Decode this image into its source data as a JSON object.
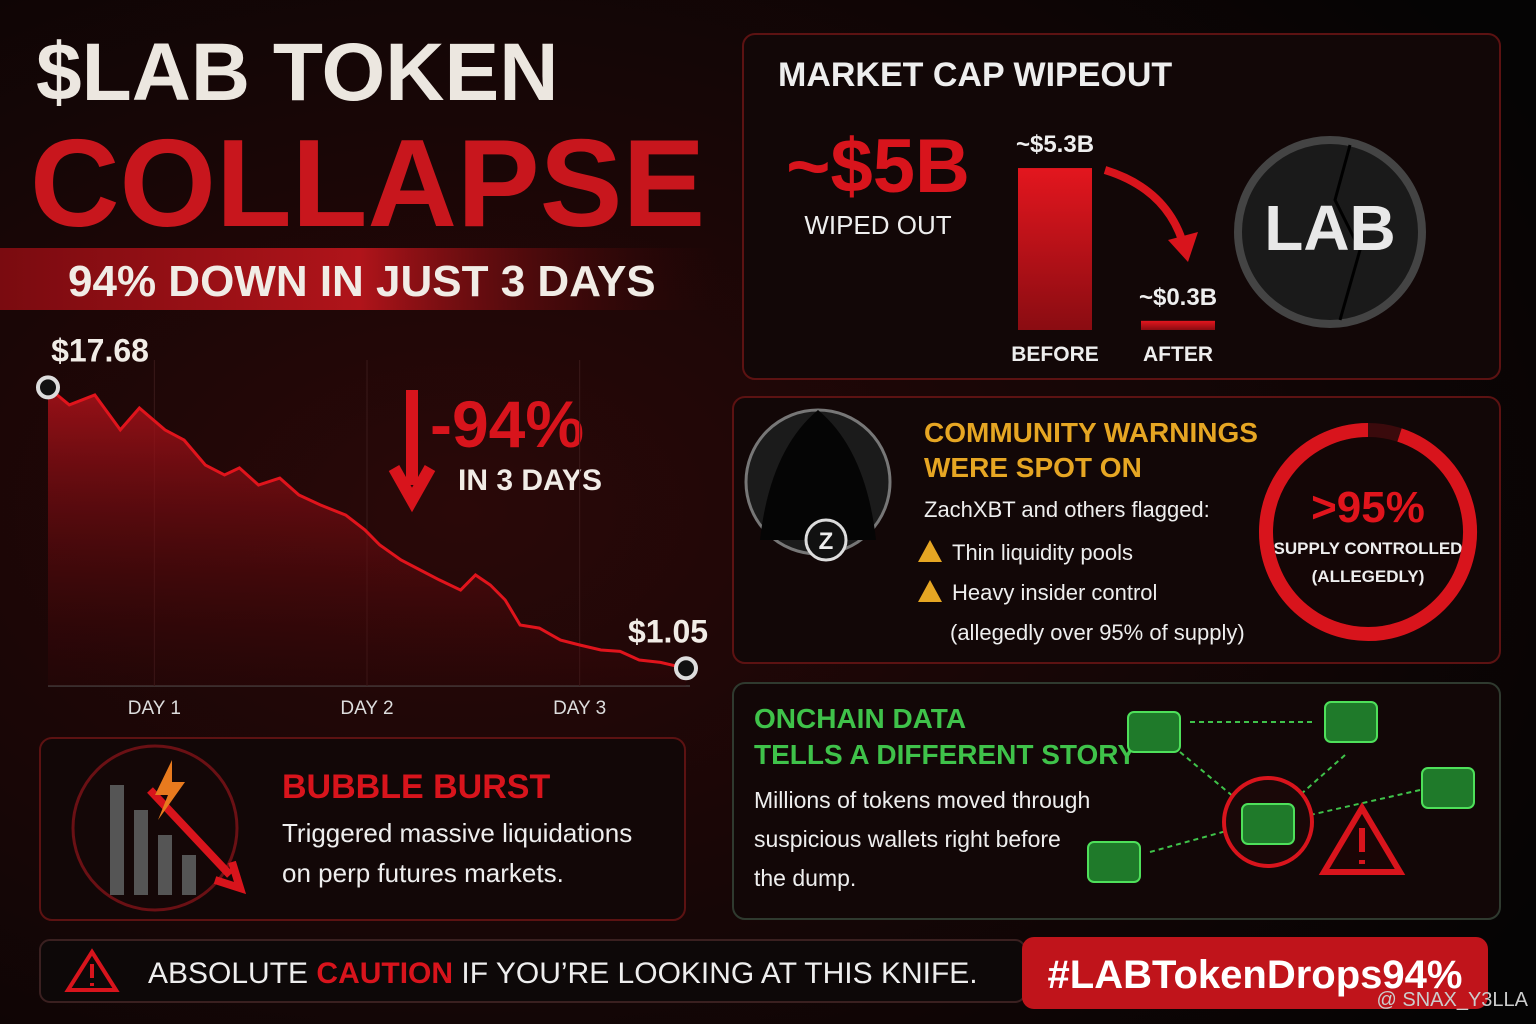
{
  "header": {
    "title": "$LAB TOKEN",
    "title_emphasis": "COLLAPSE",
    "subtitle": "94% DOWN IN JUST 3 DAYS"
  },
  "chart_data": [
    {
      "type": "line",
      "annotation": "-94%",
      "annotation_caption": "IN 3 DAYS",
      "color": "#e0141c",
      "x": [
        0.5,
        0.6,
        0.72,
        0.84,
        0.93,
        1.05,
        1.14,
        1.24,
        1.33,
        1.4,
        1.49,
        1.59,
        1.68,
        1.78,
        1.9,
        1.99,
        2.06,
        2.16,
        2.25,
        2.34,
        2.44,
        2.51,
        2.58,
        2.65,
        2.72,
        2.81,
        2.91,
        3.0,
        3.1,
        3.19,
        3.28,
        3.38,
        3.5
      ],
      "values": [
        17.68,
        16.64,
        17.23,
        15.16,
        16.46,
        15.16,
        14.56,
        13.08,
        12.49,
        12.91,
        11.9,
        12.31,
        11.31,
        10.72,
        10.12,
        9.24,
        8.35,
        7.46,
        6.87,
        6.28,
        5.68,
        6.57,
        5.98,
        5.09,
        3.61,
        3.43,
        2.72,
        2.43,
        2.13,
        2.05,
        1.54,
        1.4,
        1.05
      ],
      "value_labels": [
        "$17.68",
        null,
        null,
        null,
        null,
        null,
        null,
        null,
        null,
        null,
        null,
        null,
        null,
        null,
        null,
        null,
        null,
        null,
        null,
        null,
        null,
        null,
        null,
        null,
        null,
        null,
        null,
        null,
        null,
        null,
        null,
        null,
        "$1.05"
      ],
      "xlim": [
        0.5,
        3.5
      ],
      "ylim": [
        0,
        19.3
      ],
      "xticks": [
        {
          "value": 1,
          "label": "DAY 1"
        },
        {
          "value": 2,
          "label": "DAY 2"
        },
        {
          "value": 3,
          "label": "DAY 3"
        }
      ]
    },
    {
      "type": "bar",
      "title": "MARKET CAP WIPEOUT",
      "annotation": "~$5B",
      "annotation_caption": "WIPED OUT",
      "coin_label": "LAB",
      "color": "#d3141c",
      "categories": [
        "BEFORE",
        "AFTER"
      ],
      "values": [
        5.3,
        0.3
      ],
      "value_labels": [
        "~$5.3B",
        "~$0.3B"
      ],
      "ylim": [
        0,
        5.4
      ]
    }
  ],
  "warnings": {
    "title_line1": "COMMUNITY WARNINGS",
    "title_line2": "WERE SPOT ON",
    "avatar_label": "Z",
    "intro": "ZachXBT and others flagged:",
    "items": [
      "Thin liquidity pools",
      "Heavy insider control"
    ],
    "note": "(allegedly over 95% of supply)",
    "ring": {
      "value": 95,
      "label": ">95%",
      "caption": "SUPPLY CONTROLLED",
      "caption_note": "(ALLEGEDLY)"
    }
  },
  "bubble": {
    "title": "BUBBLE BURST",
    "text_line1": "Triggered massive liquidations",
    "text_line2": "on perp futures markets."
  },
  "onchain": {
    "title_line1": "ONCHAIN DATA",
    "title_line2": "TELLS A DIFFERENT STORY",
    "text": [
      "Millions of tokens moved through",
      "suspicious wallets right before",
      "the dump."
    ]
  },
  "footer": {
    "warning_prefix": "ABSOLUTE",
    "warning_emphasis": "CAUTION",
    "warning_suffix": "IF YOU’RE LOOKING AT THIS KNIFE.",
    "hashtag": "#LABTokenDrops94%",
    "watermark": "@ SNAX_Y3LLA"
  }
}
